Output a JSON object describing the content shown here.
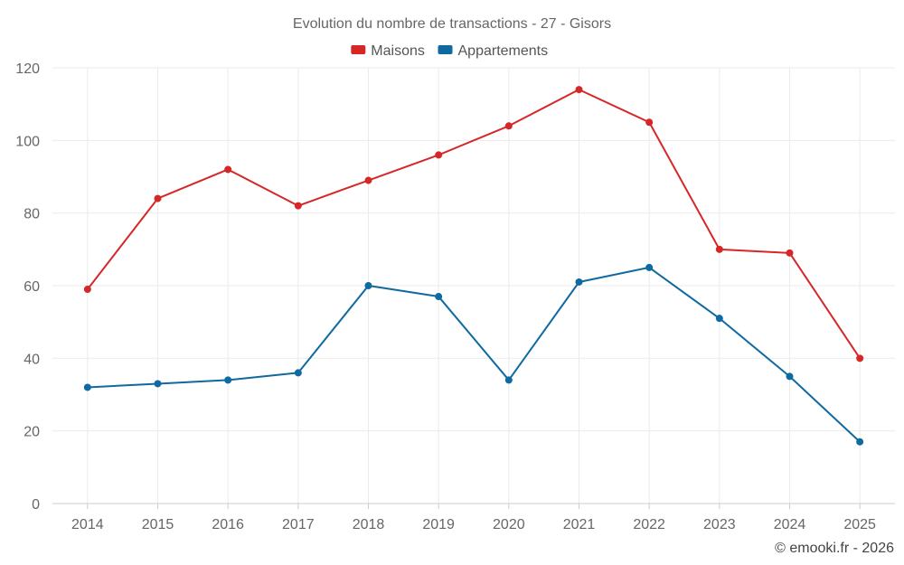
{
  "chart_data": {
    "type": "line",
    "title": "Evolution du nombre de transactions - 27 - Gisors",
    "categories": [
      "2014",
      "2015",
      "2016",
      "2017",
      "2018",
      "2019",
      "2020",
      "2021",
      "2022",
      "2023",
      "2024",
      "2025"
    ],
    "series": [
      {
        "name": "Maisons",
        "color": "#d62728",
        "values": [
          59,
          84,
          92,
          82,
          89,
          96,
          104,
          114,
          105,
          70,
          69,
          40
        ]
      },
      {
        "name": "Appartements",
        "color": "#0e6aa0",
        "values": [
          32,
          33,
          34,
          36,
          60,
          57,
          34,
          61,
          65,
          51,
          35,
          17
        ]
      }
    ],
    "ylim": [
      0,
      120
    ],
    "yticks": [
      0,
      20,
      40,
      60,
      80,
      100,
      120
    ],
    "grid": true,
    "legend": "top-center",
    "xlabel": "",
    "ylabel": ""
  },
  "footer": "© emooki.fr - 2026"
}
